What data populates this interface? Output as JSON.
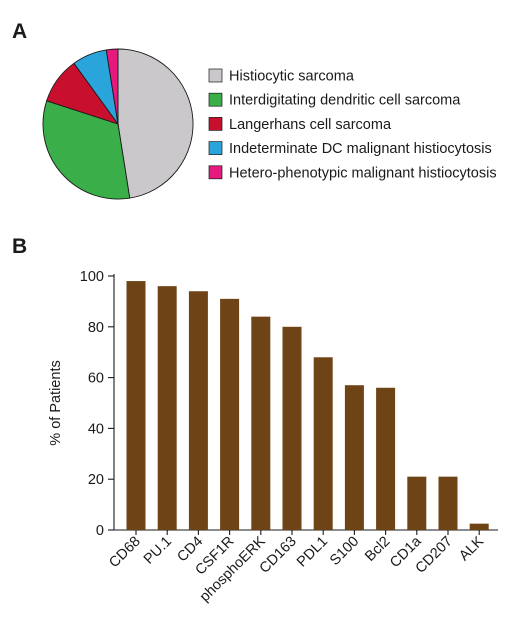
{
  "panels": {
    "a_label": "A",
    "b_label": "B"
  },
  "chart_data": [
    {
      "type": "pie",
      "title": "",
      "slices": [
        {
          "label": "Histiocytic sarcoma",
          "value": 47.5,
          "color": "#cbc8cc"
        },
        {
          "label": "Interdigitating dendritic cell sarcoma",
          "value": 32.5,
          "color": "#3aae48"
        },
        {
          "label": "Langerhans cell sarcoma",
          "value": 10,
          "color": "#c8102e"
        },
        {
          "label": "Indeterminate DC malignant histiocytosis",
          "value": 7.5,
          "color": "#2aa5dc"
        },
        {
          "label": "Hetero-phenotypic malignant histiocytosis",
          "value": 2.5,
          "color": "#e6197f"
        }
      ],
      "legend_position": "right"
    },
    {
      "type": "bar",
      "title": "",
      "xlabel": "",
      "ylabel": "% of Patients",
      "categories": [
        "CD68",
        "PU.1",
        "CD4",
        "CSF1R",
        "phosphoERK",
        "CD163",
        "PDL1",
        "S100",
        "Bcl2",
        "CD1a",
        "CD207",
        "ALK"
      ],
      "values": [
        98,
        96,
        94,
        91,
        84,
        80,
        68,
        57,
        56,
        21,
        21,
        2.5
      ],
      "ylim": [
        0,
        100
      ],
      "yticks": [
        "0",
        "20",
        "40",
        "60",
        "80",
        "100"
      ],
      "bar_color": "#6e4316",
      "grid": false
    }
  ]
}
